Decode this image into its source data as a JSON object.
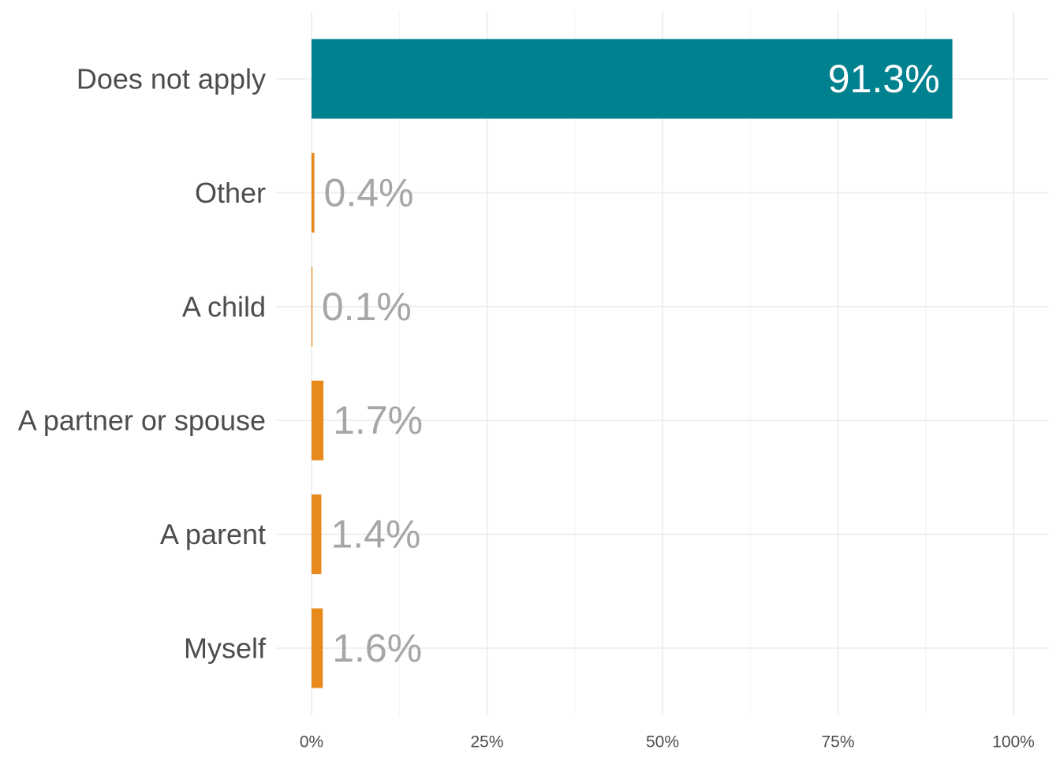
{
  "chart_data": {
    "type": "bar",
    "orientation": "horizontal",
    "title": "",
    "xlabel": "",
    "ylabel": "",
    "categories": [
      "Does not apply",
      "Other",
      "A child",
      "A partner or spouse",
      "A parent",
      "Myself"
    ],
    "values": [
      91.3,
      0.4,
      0.1,
      1.7,
      1.4,
      1.6
    ],
    "value_labels": [
      "91.3%",
      "0.4%",
      "0.1%",
      "1.7%",
      "1.4%",
      "1.6%"
    ],
    "bar_colors": [
      "#00818f",
      "#e8891b",
      "#e8891b",
      "#e8891b",
      "#e8891b",
      "#e8891b"
    ],
    "xlim": [
      0,
      100
    ],
    "x_ticks": [
      0,
      25,
      50,
      75,
      100
    ],
    "x_tick_labels": [
      "0%",
      "25%",
      "50%",
      "75%",
      "100%"
    ],
    "grid": true,
    "legend": "none"
  }
}
